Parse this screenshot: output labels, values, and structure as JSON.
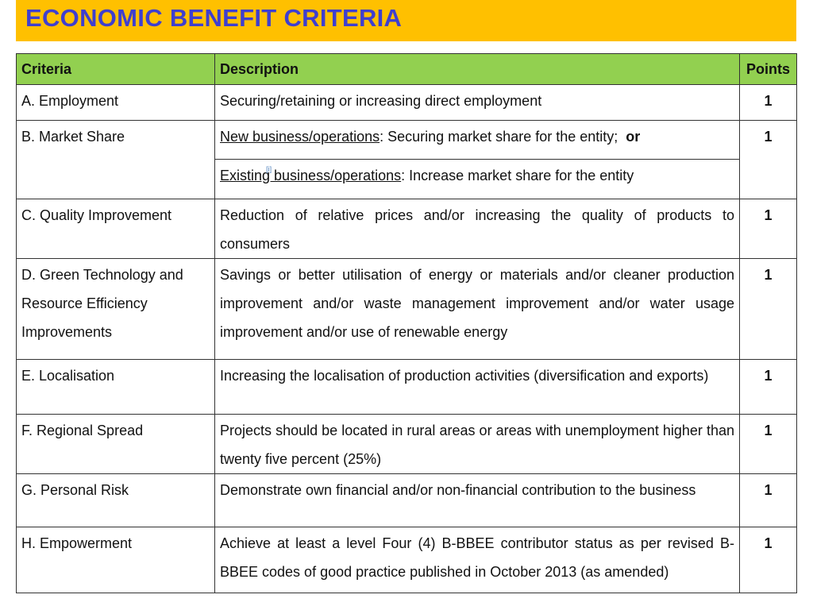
{
  "header": {
    "title": "ECONOMIC BENEFIT CRITERIA"
  },
  "table": {
    "columns": [
      "Criteria",
      "Description",
      "Points"
    ],
    "rows": [
      {
        "criteria": "A. Employment",
        "description": "Securing/retaining or increasing direct employment",
        "points": "1"
      },
      {
        "criteria": "B. Market Share",
        "descriptions": [
          {
            "underlined": "New business/operations",
            "rest": ": Securing market share for the entity;",
            "bold": "or"
          },
          {
            "underlined": "Existing business/operations",
            "rest": ": Increase market share for the entity",
            "note": "[i]"
          }
        ],
        "points": "1"
      },
      {
        "criteria": "C. Quality Improvement",
        "description": "Reduction of relative prices and/or increasing the quality of products to consumers",
        "points": "1"
      },
      {
        "criteria": "D. Green Technology and Resource Efficiency Improvements",
        "description": "Savings or better utilisation of energy or materials and/or cleaner production improvement and/or waste management improvement and/or water usage improvement and/or use of renewable energy",
        "points": "1"
      },
      {
        "criteria": "E. Localisation",
        "description": "Increasing the localisation of production activities (diversification and exports)",
        "points": "1"
      },
      {
        "criteria": "F. Regional Spread",
        "description": "Projects should be located in rural areas or areas with unemployment higher than twenty five percent (25%)",
        "points": "1"
      },
      {
        "criteria": "G. Personal Risk",
        "description": "Demonstrate own financial and/or non-financial contribution to the business",
        "points": "1"
      },
      {
        "criteria": "H. Empowerment",
        "description": "Achieve at least a level Four (4) B-BBEE contributor status as per revised B-BBEE codes of good practice published in October 2013 (as amended)",
        "points": "1"
      }
    ]
  }
}
